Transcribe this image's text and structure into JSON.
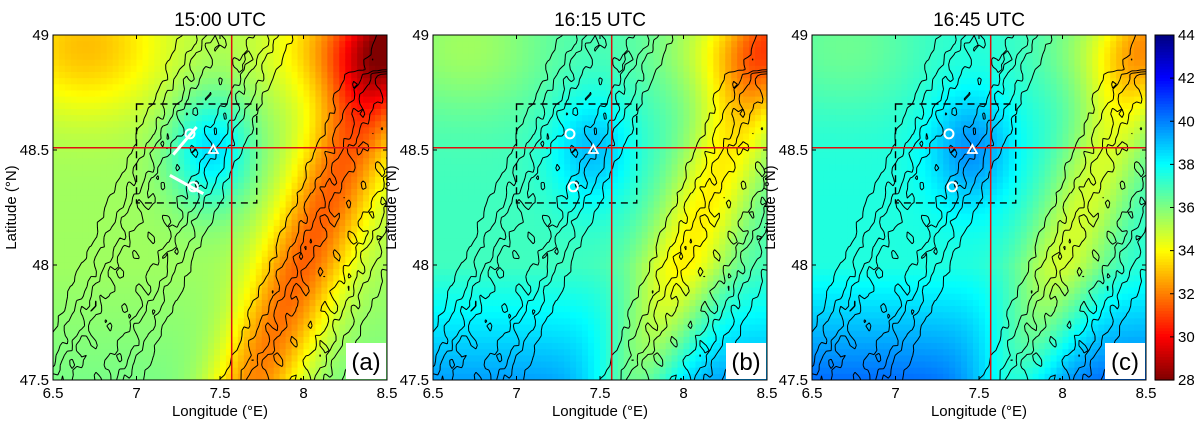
{
  "chart_data": [
    {
      "type": "heatmap",
      "title": "15:00 UTC",
      "panel_label": "(a)",
      "xlabel": "Longitude (°E)",
      "ylabel": "Latitude (°N)",
      "xlim": [
        6.5,
        8.5
      ],
      "ylim": [
        47.5,
        49
      ],
      "xticks": [
        6.5,
        7,
        7.5,
        8,
        8.5
      ],
      "xtick_labels": [
        "6.5",
        "7",
        "7.5",
        "8",
        "8.5"
      ],
      "yticks": [
        47.5,
        48,
        48.5,
        49
      ],
      "ytick_labels": [
        "47.5",
        "48",
        "48.5",
        "49"
      ],
      "crosshair": {
        "lon": 7.57,
        "lat": 48.51,
        "color": "#e01010"
      },
      "dashed_box": {
        "lon": [
          7.0,
          7.72
        ],
        "lat": [
          48.27,
          48.7
        ]
      },
      "has_markers": true,
      "has_tracks": true
    },
    {
      "type": "heatmap",
      "title": "16:15 UTC",
      "panel_label": "(b)",
      "xlabel": "Longitude (°E)",
      "ylabel": "Latitude (°N)",
      "xlim": [
        6.5,
        8.5
      ],
      "ylim": [
        47.5,
        49
      ],
      "xticks": [
        6.5,
        7,
        7.5,
        8,
        8.5
      ],
      "xtick_labels": [
        "6.5",
        "7",
        "7.5",
        "8",
        "8.5"
      ],
      "yticks": [
        47.5,
        48,
        48.5,
        49
      ],
      "ytick_labels": [
        "47.5",
        "48",
        "48.5",
        "49"
      ],
      "crosshair": {
        "lon": 7.57,
        "lat": 48.51,
        "color": "#e01010"
      },
      "dashed_box": {
        "lon": [
          7.0,
          7.72
        ],
        "lat": [
          48.27,
          48.7
        ]
      },
      "has_markers": true,
      "has_tracks": false
    },
    {
      "type": "heatmap",
      "title": "16:45 UTC",
      "panel_label": "(c)",
      "xlabel": "Longitude (°E)",
      "ylabel": "Latitude (°N)",
      "xlim": [
        6.5,
        8.5
      ],
      "ylim": [
        47.5,
        49
      ],
      "xticks": [
        6.5,
        7,
        7.5,
        8,
        8.5
      ],
      "xtick_labels": [
        "6.5",
        "7",
        "7.5",
        "8",
        "8.5"
      ],
      "yticks": [
        47.5,
        48,
        48.5,
        49
      ],
      "ytick_labels": [
        "47.5",
        "48",
        "48.5",
        "49"
      ],
      "crosshair": {
        "lon": 7.57,
        "lat": 48.51,
        "color": "#e01010"
      },
      "dashed_box": {
        "lon": [
          7.0,
          7.72
        ],
        "lat": [
          48.27,
          48.7
        ]
      },
      "has_markers": true,
      "has_tracks": false
    }
  ],
  "colorbar": {
    "range": [
      28,
      44
    ],
    "ticks": [
      28,
      30,
      32,
      34,
      36,
      38,
      40,
      42,
      44
    ],
    "tick_labels": [
      "28",
      "30",
      "32",
      "34",
      "36",
      "38",
      "40",
      "42",
      "44"
    ],
    "colormap": "jet-reversed",
    "low_color": "#800000",
    "high_color": "#00008f"
  }
}
